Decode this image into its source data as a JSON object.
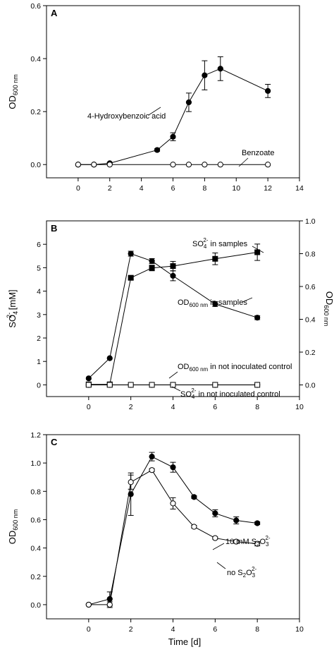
{
  "figure": {
    "xlabel_shared": "Time [d]"
  },
  "chart_data": [
    {
      "panel": "A",
      "type": "line",
      "xlim": [
        -2,
        14
      ],
      "xticks": [
        0,
        2,
        4,
        6,
        8,
        10,
        12,
        14
      ],
      "ylim": [
        -0.05,
        0.6
      ],
      "yticks": [
        0.0,
        0.2,
        0.4,
        0.6
      ],
      "ytick_labels": [
        "0.0",
        "0.2",
        "0.4",
        "0.6"
      ],
      "ylabel": {
        "main": "OD",
        "sub": "600 nm"
      },
      "series": [
        {
          "name": "4-Hydroxybenzoic acid",
          "marker": "filled-circle",
          "x": [
            0,
            1,
            2,
            5,
            6,
            7,
            8,
            9,
            12
          ],
          "y": [
            0.0,
            0.0,
            0.005,
            0.055,
            0.105,
            0.235,
            0.337,
            0.362,
            0.278
          ],
          "err": [
            0,
            0,
            0.003,
            0.005,
            0.015,
            0.035,
            0.055,
            0.045,
            0.025
          ]
        },
        {
          "name": "Benzoate",
          "marker": "open-circle",
          "x": [
            0,
            1,
            2,
            6,
            7,
            8,
            9,
            12
          ],
          "y": [
            0,
            0,
            0,
            0,
            0,
            0,
            0,
            0
          ],
          "err": [
            0,
            0,
            0,
            0,
            0,
            0,
            0,
            0
          ]
        }
      ],
      "annotations": [
        {
          "text": "4-Hydroxybenzoic acid",
          "series": 0
        },
        {
          "text": "Benzoate",
          "series": 1
        }
      ]
    },
    {
      "panel": "B",
      "type": "line",
      "xlim": [
        -2,
        10
      ],
      "xticks": [
        0,
        2,
        4,
        6,
        8,
        10
      ],
      "ylim": [
        -0.5,
        7.0
      ],
      "yticks": [
        0,
        1,
        2,
        3,
        4,
        5,
        6
      ],
      "ylabel": {
        "main": "SO",
        "sub": "4",
        "sup": "2-",
        "unit": " [mM]"
      },
      "ylim_right": [
        -0.071,
        1.0
      ],
      "yticks_right": [
        0.0,
        0.2,
        0.4,
        0.6,
        0.8,
        1.0
      ],
      "ytick_labels_right": [
        "0.0",
        "0.2",
        "0.4",
        "0.6",
        "0.8",
        "1.0"
      ],
      "ylabel_right": {
        "main": "OD",
        "sub": "600 nm"
      },
      "series": [
        {
          "name": "SO4 2- in samples",
          "axis": "left",
          "marker": "filled-square",
          "x": [
            0,
            1,
            2,
            3,
            4,
            6,
            8
          ],
          "y": [
            0.02,
            0.02,
            4.57,
            4.99,
            5.07,
            5.38,
            5.66
          ],
          "err": [
            0,
            0,
            0.08,
            0.12,
            0.2,
            0.25,
            0.35
          ]
        },
        {
          "name": "OD600 in samples",
          "axis": "right",
          "marker": "filled-circle",
          "x": [
            0,
            1,
            2,
            3,
            4,
            6,
            8
          ],
          "y": [
            0.04,
            0.163,
            0.8,
            0.755,
            0.665,
            0.493,
            0.41
          ],
          "err": [
            0,
            0,
            0.015,
            0.015,
            0.03,
            0.015,
            0.012
          ]
        },
        {
          "name": "OD600 in not inoculated control",
          "axis": "right",
          "marker": "open-circle",
          "x": [
            0,
            1,
            2,
            3,
            4,
            6,
            8
          ],
          "y": [
            0.0,
            0.0,
            0.0,
            0.0,
            0.0,
            0.0,
            0.0
          ],
          "err": [
            0,
            0,
            0,
            0,
            0,
            0,
            0
          ]
        },
        {
          "name": "SO4 2- in not inoculated control",
          "axis": "left",
          "marker": "open-square",
          "x": [
            0,
            1,
            2,
            3,
            4,
            6,
            8
          ],
          "y": [
            0.0,
            0.0,
            0.0,
            0.0,
            0.0,
            0.0,
            0.0
          ],
          "err": [
            0,
            0,
            0,
            0,
            0,
            0,
            0
          ]
        }
      ],
      "annotations": [
        {
          "main": "SO",
          "sub": "4",
          "sup": "2-",
          "rest": " in samples"
        },
        {
          "main": "OD",
          "sub": "600 nm",
          "rest": " in samples"
        },
        {
          "main": "OD",
          "sub": "600 nm",
          "rest": " in not inoculated control"
        },
        {
          "main": "SO",
          "sub": "4",
          "sup": "2-",
          "rest": " in not inoculated control"
        }
      ]
    },
    {
      "panel": "C",
      "type": "line",
      "xlim": [
        -2,
        10
      ],
      "xticks": [
        0,
        2,
        4,
        6,
        8,
        10
      ],
      "ylim": [
        -0.1,
        1.2
      ],
      "yticks": [
        0.0,
        0.2,
        0.4,
        0.6,
        0.8,
        1.0,
        1.2
      ],
      "ytick_labels": [
        "0.0",
        "0.2",
        "0.4",
        "0.6",
        "0.8",
        "1.0",
        "1.2"
      ],
      "ylabel": {
        "main": "OD",
        "sub": "600 nm"
      },
      "xlabel": "Time [d]",
      "series": [
        {
          "name": "10 mM S2O3 2-",
          "marker": "filled-circle",
          "x": [
            0,
            1,
            2,
            3,
            4,
            5,
            6,
            7,
            8
          ],
          "y": [
            0.0,
            0.04,
            0.78,
            1.045,
            0.97,
            0.76,
            0.645,
            0.595,
            0.575
          ],
          "err": [
            0,
            0.05,
            0.15,
            0.03,
            0.035,
            0.01,
            0.025,
            0.025,
            0.01
          ]
        },
        {
          "name": "no S2O3 2-",
          "marker": "open-circle",
          "x": [
            0,
            1,
            2,
            3,
            4,
            5,
            6,
            7,
            8
          ],
          "y": [
            0.0,
            0.0,
            0.865,
            0.95,
            0.715,
            0.55,
            0.47,
            0.445,
            0.43
          ],
          "err": [
            0,
            0.02,
            0.05,
            0.01,
            0.04,
            0.01,
            0.008,
            0.012,
            0.015
          ]
        }
      ],
      "annotations": [
        {
          "pre": "10 mM S",
          "sub": "2",
          "mid": "O",
          "sub2": "3",
          "sup": "2-"
        },
        {
          "pre": "no S",
          "sub": "2",
          "mid": "O",
          "sub2": "3",
          "sup": "2-"
        }
      ]
    }
  ]
}
